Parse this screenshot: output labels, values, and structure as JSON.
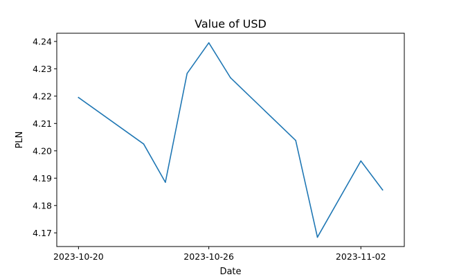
{
  "chart_data": {
    "type": "line",
    "title": "Value of USD",
    "xlabel": "Date",
    "ylabel": "PLN",
    "x": [
      "2023-10-20",
      "2023-10-23",
      "2023-10-24",
      "2023-10-25",
      "2023-10-26",
      "2023-10-27",
      "2023-10-30",
      "2023-10-31",
      "2023-11-02",
      "2023-11-03"
    ],
    "series": [
      {
        "name": "",
        "values": [
          4.2195,
          4.2025,
          4.1885,
          4.2283,
          4.2395,
          4.2267,
          4.2038,
          4.1684,
          4.1963,
          4.1857
        ]
      }
    ],
    "xlim": [
      "2023-10-19",
      "2023-11-04"
    ],
    "ylim": [
      4.165,
      4.243
    ],
    "x_ticks": [
      "2023-10-20",
      "2023-10-26",
      "2023-11-02"
    ],
    "y_ticks": [
      "4.17",
      "4.18",
      "4.19",
      "4.20",
      "4.21",
      "4.22",
      "4.23",
      "4.24"
    ],
    "grid": false,
    "colors": {
      "line": "#1f77b4",
      "axes": "#000000"
    }
  }
}
